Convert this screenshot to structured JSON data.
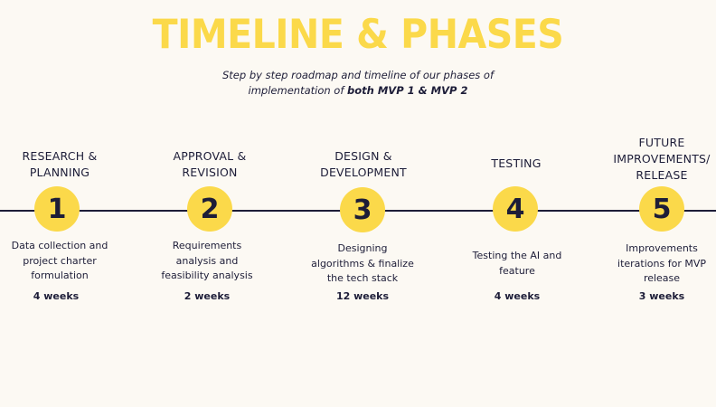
{
  "header": {
    "title": "TIMELINE & PHASES",
    "subtitle_line1": "Step by step roadmap and timeline of our phases of",
    "subtitle_line2_prefix": "implementation of ",
    "subtitle_line2_bold": "both MVP 1 & MVP 2"
  },
  "phases": [
    {
      "number": "1",
      "label_line1": "RESEARCH &",
      "label_line2": "PLANNING",
      "desc_line1": "Data collection and",
      "desc_line2": "project charter",
      "desc_line3": "formulation",
      "duration": "4 weeks"
    },
    {
      "number": "2",
      "label_line1": "APPROVAL &",
      "label_line2": "REVISION",
      "desc_line1": "Requirements",
      "desc_line2": "analysis and",
      "desc_line3": "feasibility analysis",
      "duration": "2 weeks"
    },
    {
      "number": "3",
      "label_line1": "DESIGN &",
      "label_line2": "DEVELOPMENT",
      "desc_line1": "Designing",
      "desc_line2": "algorithms & finalize",
      "desc_line3": "the tech stack",
      "duration": "12 weeks"
    },
    {
      "number": "4",
      "label_line1": "TESTING",
      "desc_line1": "Testing the AI and",
      "desc_line2": "feature",
      "duration": "4 weeks"
    },
    {
      "number": "5",
      "label_line1": "FUTURE",
      "label_line2": "IMPROVEMENTS/",
      "label_line3": "RELEASE",
      "desc_line1": "Improvements",
      "desc_line2": "iterations for MVP",
      "desc_line3": "release",
      "duration": "3 weeks"
    }
  ]
}
